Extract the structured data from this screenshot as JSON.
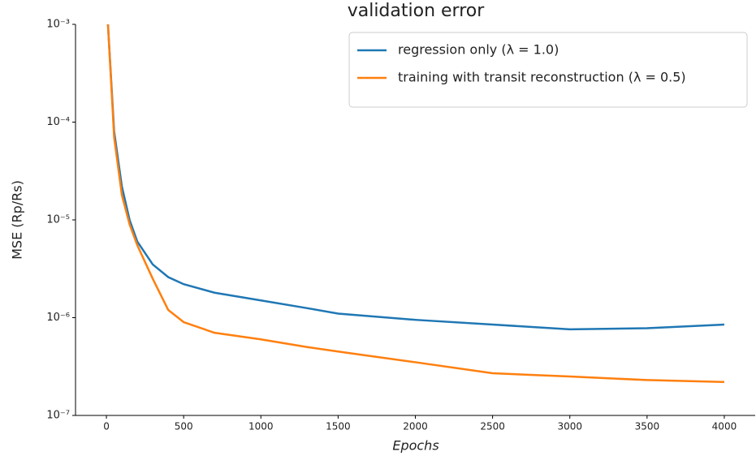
{
  "chart_data": {
    "type": "line",
    "title": "validation error",
    "xlabel": "Epochs",
    "ylabel": "MSE (Rp/Rs)",
    "x": [
      10,
      50,
      100,
      150,
      200,
      300,
      400,
      500,
      700,
      1000,
      1300,
      1500,
      2000,
      2500,
      3000,
      3500,
      4000
    ],
    "series": [
      {
        "name": "regression only (λ = 1.0)",
        "color": "#1f77b4",
        "values": [
          0.001,
          8e-05,
          2.2e-05,
          1e-05,
          6e-06,
          3.5e-06,
          2.6e-06,
          2.2e-06,
          1.8e-06,
          1.5e-06,
          1.25e-06,
          1.1e-06,
          9.5e-07,
          8.5e-07,
          7.6e-07,
          7.8e-07,
          8.5e-07
        ]
      },
      {
        "name": "training with transit reconstruction (λ = 0.5)",
        "color": "#ff7f0e",
        "values": [
          0.001,
          7e-05,
          1.8e-05,
          9e-06,
          5.5e-06,
          2.5e-06,
          1.2e-06,
          9e-07,
          7e-07,
          6e-07,
          5e-07,
          4.5e-07,
          3.5e-07,
          2.7e-07,
          2.5e-07,
          2.3e-07,
          2.2e-07
        ]
      }
    ],
    "xlim": [
      -200,
      4200
    ],
    "xticks": [
      0,
      500,
      1000,
      1500,
      2000,
      2500,
      3000,
      3500,
      4000
    ],
    "ylim": [
      1e-07,
      0.001
    ],
    "log_y": true,
    "yticks": [
      {
        "value": 1e-07,
        "label": "10⁻⁷"
      },
      {
        "value": 1e-06,
        "label": "10⁻⁶"
      },
      {
        "value": 1e-05,
        "label": "10⁻⁵"
      },
      {
        "value": 0.0001,
        "label": "10⁻⁴"
      },
      {
        "value": 0.001,
        "label": "10⁻³"
      }
    ],
    "legend": "upper right"
  }
}
